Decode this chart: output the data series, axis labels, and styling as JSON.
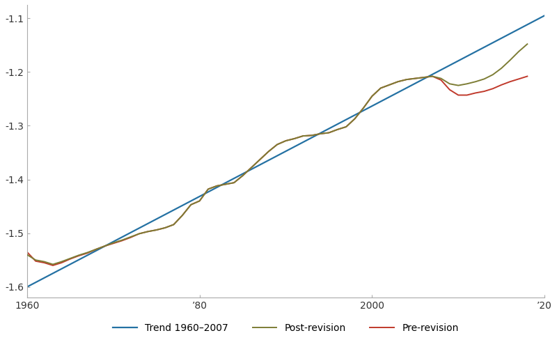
{
  "title": "",
  "xlabel": "",
  "ylabel": "",
  "xlim": [
    1960,
    2020
  ],
  "ylim": [
    -1.62,
    -1.075
  ],
  "yticks": [
    -1.6,
    -1.5,
    -1.4,
    -1.3,
    -1.2,
    -1.1
  ],
  "xticks": [
    1960,
    1980,
    2000,
    2020
  ],
  "xticklabels": [
    "1960",
    "’80",
    "2000",
    "’20"
  ],
  "legend_labels": [
    "Post-revision",
    "Pre-revision",
    "Trend 1960–2007"
  ],
  "background_color": "#ffffff",
  "post_revision": {
    "years": [
      1960,
      1961,
      1962,
      1963,
      1964,
      1965,
      1966,
      1967,
      1968,
      1969,
      1970,
      1971,
      1972,
      1973,
      1974,
      1975,
      1976,
      1977,
      1978,
      1979,
      1980,
      1981,
      1982,
      1983,
      1984,
      1985,
      1986,
      1987,
      1988,
      1989,
      1990,
      1991,
      1992,
      1993,
      1994,
      1995,
      1996,
      1997,
      1998,
      1999,
      2000,
      2001,
      2002,
      2003,
      2004,
      2005,
      2006,
      2007,
      2008,
      2009,
      2010,
      2011,
      2012,
      2013,
      2014,
      2015,
      2016,
      2017,
      2018
    ],
    "values": [
      -1.54,
      -1.55,
      -1.553,
      -1.558,
      -1.553,
      -1.547,
      -1.541,
      -1.536,
      -1.53,
      -1.524,
      -1.518,
      -1.513,
      -1.507,
      -1.501,
      -1.497,
      -1.494,
      -1.49,
      -1.484,
      -1.467,
      -1.447,
      -1.44,
      -1.418,
      -1.412,
      -1.409,
      -1.406,
      -1.393,
      -1.378,
      -1.363,
      -1.348,
      -1.335,
      -1.328,
      -1.324,
      -1.319,
      -1.318,
      -1.315,
      -1.313,
      -1.307,
      -1.302,
      -1.287,
      -1.267,
      -1.245,
      -1.23,
      -1.224,
      -1.218,
      -1.214,
      -1.212,
      -1.21,
      -1.208,
      -1.212,
      -1.222,
      -1.225,
      -1.222,
      -1.218,
      -1.213,
      -1.205,
      -1.193,
      -1.178,
      -1.162,
      -1.148
    ]
  },
  "pre_revision": {
    "years": [
      1960,
      1961,
      1962,
      1963,
      1964,
      1965,
      1966,
      1967,
      1968,
      1969,
      1970,
      1971,
      1972,
      1973,
      1974,
      1975,
      1976,
      1977,
      1978,
      1979,
      1980,
      1981,
      1982,
      1983,
      1984,
      1985,
      1986,
      1987,
      1988,
      1989,
      1990,
      1991,
      1992,
      1993,
      1994,
      1995,
      1996,
      1997,
      1998,
      1999,
      2000,
      2001,
      2002,
      2003,
      2004,
      2005,
      2006,
      2007,
      2008,
      2009,
      2010,
      2011,
      2012,
      2013,
      2014,
      2015,
      2016,
      2017,
      2018
    ],
    "values": [
      -1.535,
      -1.552,
      -1.555,
      -1.56,
      -1.555,
      -1.548,
      -1.542,
      -1.537,
      -1.53,
      -1.524,
      -1.519,
      -1.514,
      -1.508,
      -1.501,
      -1.497,
      -1.494,
      -1.49,
      -1.484,
      -1.467,
      -1.447,
      -1.44,
      -1.418,
      -1.412,
      -1.409,
      -1.406,
      -1.393,
      -1.378,
      -1.363,
      -1.348,
      -1.335,
      -1.328,
      -1.324,
      -1.319,
      -1.318,
      -1.315,
      -1.313,
      -1.307,
      -1.302,
      -1.287,
      -1.267,
      -1.245,
      -1.23,
      -1.224,
      -1.218,
      -1.214,
      -1.212,
      -1.21,
      -1.208,
      -1.215,
      -1.233,
      -1.243,
      -1.243,
      -1.239,
      -1.236,
      -1.231,
      -1.224,
      -1.218,
      -1.213,
      -1.208
    ]
  },
  "trend": {
    "years": [
      1960,
      2020
    ],
    "values": [
      -1.6,
      -1.095
    ]
  },
  "line_colors": {
    "post_revision": "#7d7d35",
    "pre_revision": "#c0392b",
    "trend": "#2471a3"
  },
  "line_widths": {
    "post_revision": 1.4,
    "pre_revision": 1.4,
    "trend": 1.6
  }
}
